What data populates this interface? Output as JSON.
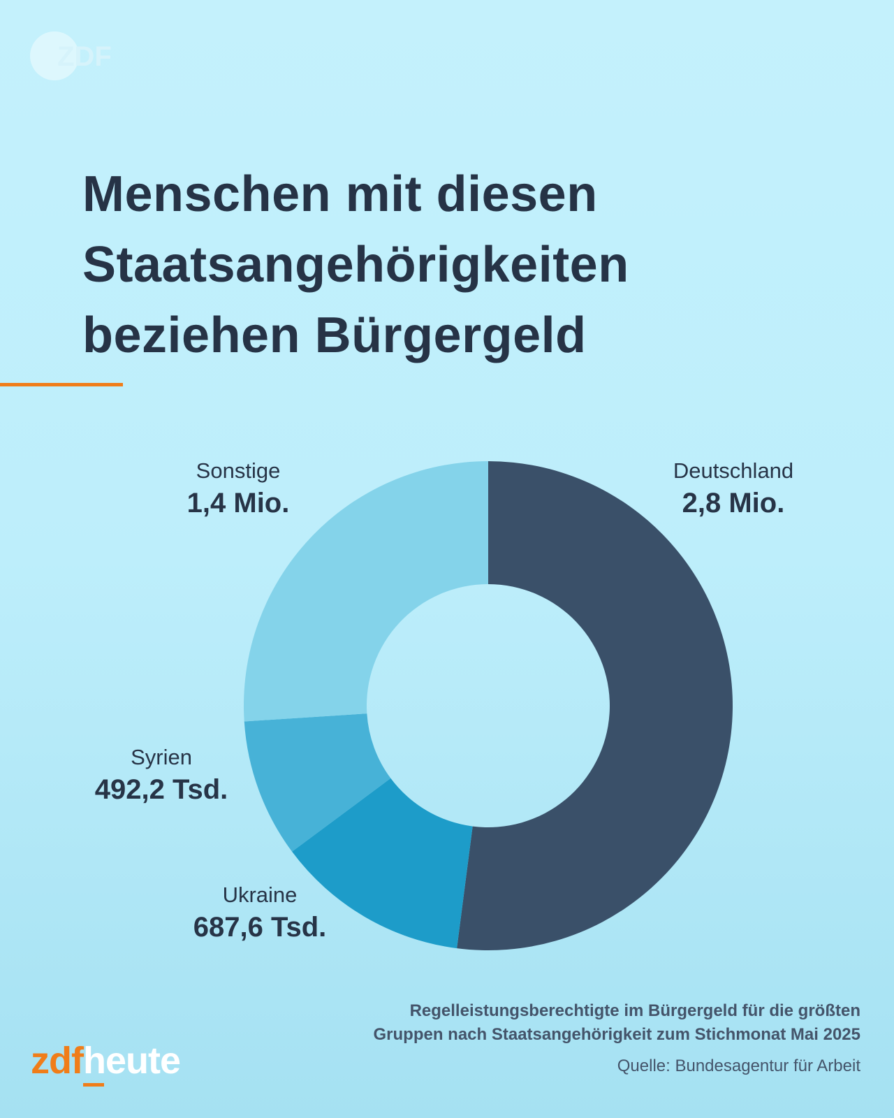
{
  "header": {
    "logo_text": "ZDF",
    "title_lines": [
      "Menschen mit diesen",
      "Staatsangehörigkeiten",
      "beziehen Bürgergeld"
    ]
  },
  "chart_data": {
    "type": "pie",
    "variant": "donut",
    "title": "Menschen mit diesen Staatsangehörigkeiten beziehen Bürgergeld",
    "slices": [
      {
        "name": "Deutschland",
        "value": 2800000,
        "label": "2,8 Mio.",
        "color": "#3a5069"
      },
      {
        "name": "Ukraine",
        "value": 687600,
        "label": "687,6 Tsd.",
        "color": "#1d9cc9"
      },
      {
        "name": "Syrien",
        "value": 492200,
        "label": "492,2 Tsd.",
        "color": "#47b2d7"
      },
      {
        "name": "Sonstige",
        "value": 1400000,
        "label": "1,4 Mio.",
        "color": "#84d3ea"
      }
    ],
    "start": "top",
    "direction": "clockwise"
  },
  "footer": {
    "description_lines": [
      "Regelleistungsberechtigte im Bürgergeld für die größten",
      "Gruppen nach Staatsangehörigkeit zum Stichmonat Mai 2025"
    ],
    "source": "Quelle: Bundesagentur für Arbeit",
    "brand_zdf": "zdf",
    "brand_heute": "heute"
  },
  "colors": {
    "accent": "#f07d19",
    "title": "#263346"
  }
}
